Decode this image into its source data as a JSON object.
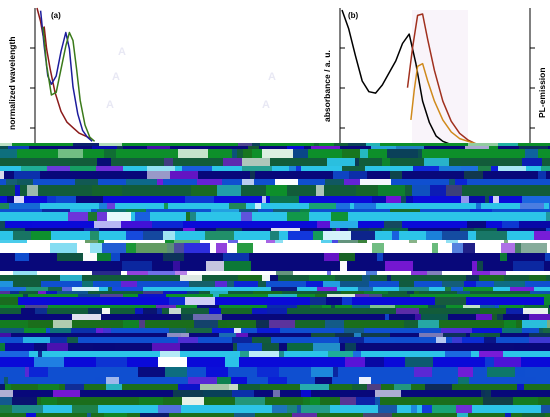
{
  "chart_data": [
    {
      "panel": "(a)",
      "type": "line",
      "ylabel": "normalized wavelength",
      "xlim": [
        0,
        100
      ],
      "ylim": [
        0,
        1
      ],
      "series": [
        {
          "color": "#8b1a1a",
          "x": [
            0,
            3,
            5,
            6,
            8,
            11,
            15,
            20,
            25,
            30,
            35,
            40,
            45
          ],
          "y": [
            1.0,
            0.9,
            0.8,
            0.86,
            0.7,
            0.55,
            0.38,
            0.24,
            0.16,
            0.12,
            0.08,
            0.06,
            0.04
          ]
        },
        {
          "color": "#1c1c9c",
          "x": [
            3,
            6,
            9,
            12,
            16,
            20,
            24,
            27,
            30,
            34,
            38,
            42,
            46
          ],
          "y": [
            0.98,
            0.72,
            0.5,
            0.44,
            0.5,
            0.68,
            0.82,
            0.7,
            0.42,
            0.22,
            0.1,
            0.05,
            0.02
          ]
        },
        {
          "color": "#3a7a1a",
          "x": [
            5,
            8,
            12,
            16,
            20,
            24,
            27,
            30,
            33,
            36,
            40,
            44,
            48
          ],
          "y": [
            0.86,
            0.58,
            0.36,
            0.38,
            0.55,
            0.72,
            0.82,
            0.76,
            0.55,
            0.32,
            0.14,
            0.05,
            0.02
          ]
        }
      ]
    },
    {
      "panel": "(b)",
      "type": "line",
      "ylabel": "absorbance / a. u.",
      "y2label": "PL-emission",
      "xlim": [
        0,
        100
      ],
      "ylim": [
        0,
        1
      ],
      "series": [
        {
          "color": "#000000",
          "x": [
            0,
            4,
            8,
            12,
            16,
            20,
            24,
            28,
            32,
            36,
            40,
            44,
            48,
            52,
            56,
            60,
            64
          ],
          "y": [
            1.0,
            0.86,
            0.66,
            0.47,
            0.39,
            0.38,
            0.44,
            0.53,
            0.62,
            0.75,
            0.82,
            0.6,
            0.32,
            0.16,
            0.06,
            0.02,
            0.0
          ]
        },
        {
          "color": "#a0301e",
          "x": [
            39,
            42,
            45,
            48,
            51,
            55,
            60,
            65,
            70,
            75,
            80
          ],
          "y": [
            0.42,
            0.72,
            0.96,
            0.97,
            0.78,
            0.55,
            0.32,
            0.17,
            0.08,
            0.03,
            0.0
          ]
        },
        {
          "color": "#d08a1c",
          "x": [
            41,
            43,
            45,
            48,
            51,
            55,
            60,
            65,
            70,
            75,
            80
          ],
          "y": [
            0.18,
            0.4,
            0.58,
            0.6,
            0.47,
            0.32,
            0.18,
            0.09,
            0.04,
            0.02,
            0.0
          ]
        }
      ]
    }
  ]
}
